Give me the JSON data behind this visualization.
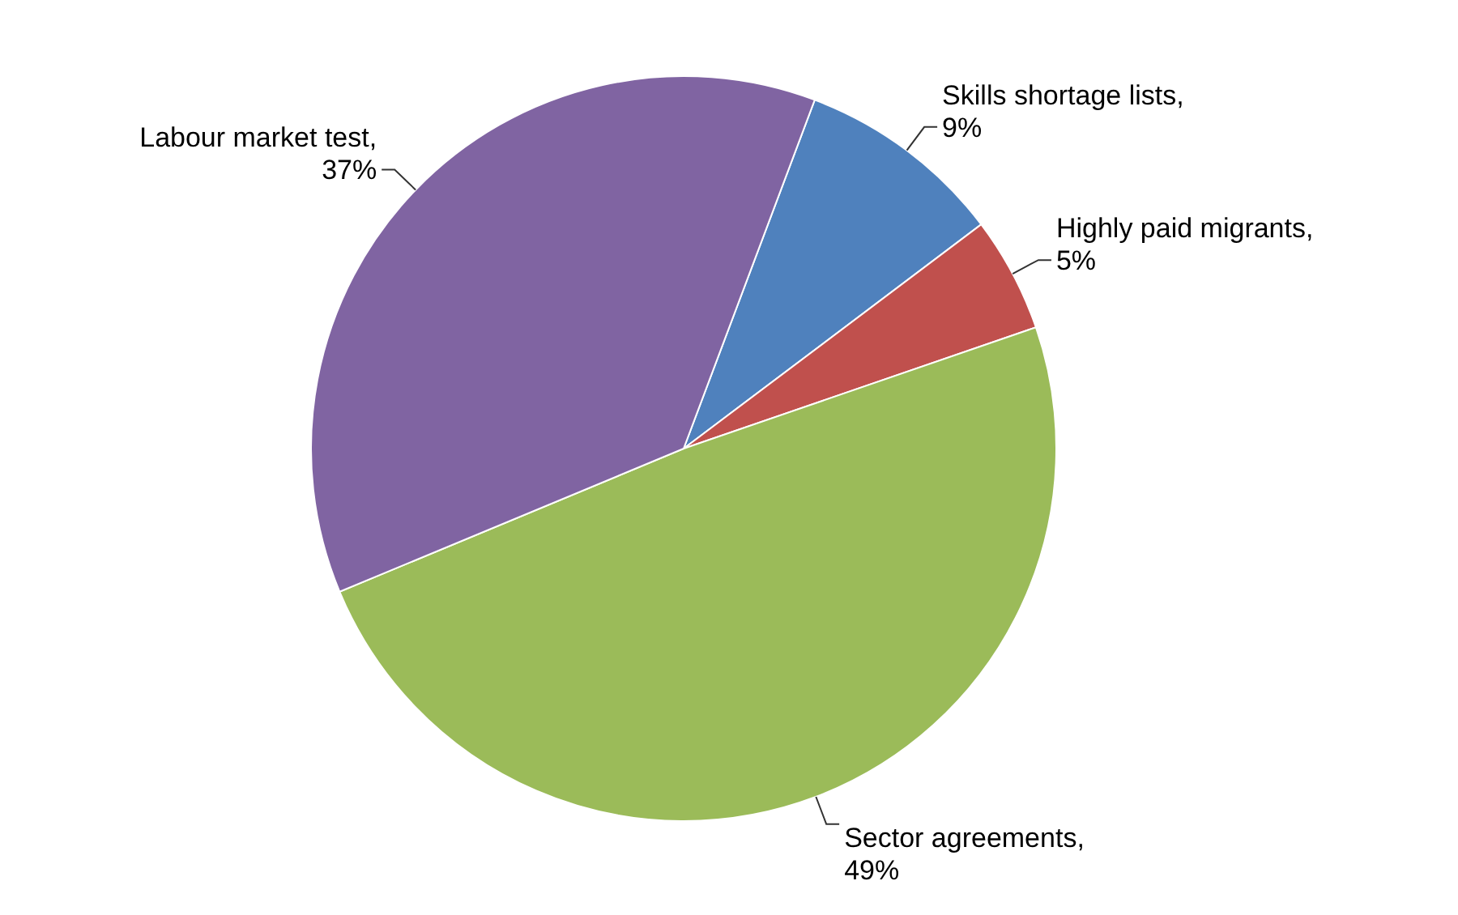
{
  "chart_data": {
    "type": "pie",
    "categories": [
      "Skills shortage lists",
      "Highly paid migrants",
      "Sector agreements",
      "Labour market test"
    ],
    "values": [
      9,
      5,
      49,
      37
    ],
    "value_labels": [
      ",\n9%",
      ",\n5%",
      ",\n49%",
      ",\n37%"
    ],
    "colors": [
      "#4f81bd",
      "#c0504d",
      "#9bbb59",
      "#8064a2"
    ],
    "legend": false
  }
}
